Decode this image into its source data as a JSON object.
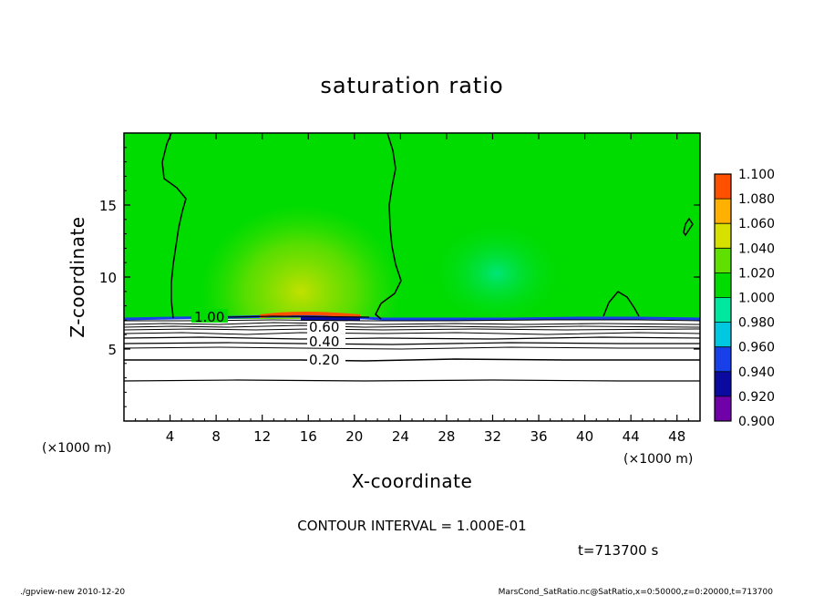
{
  "chart_data": {
    "type": "contour",
    "title": "saturation ratio",
    "xlabel": "X-coordinate",
    "ylabel": "Z-coordinate",
    "x_unit": "(×1000 m)",
    "y_unit": "(×1000 m)",
    "xlim": [
      0,
      50
    ],
    "ylim": [
      0,
      20
    ],
    "xticks": [
      4,
      8,
      12,
      16,
      20,
      24,
      28,
      32,
      36,
      40,
      44,
      48
    ],
    "yticks": [
      5,
      10,
      15
    ],
    "colorbar": {
      "levels": [
        0.9,
        0.92,
        0.94,
        0.96,
        0.98,
        1.0,
        1.02,
        1.04,
        1.06,
        1.08,
        1.1
      ],
      "labels": [
        "0.900",
        "0.920",
        "0.940",
        "0.960",
        "0.980",
        "1.000",
        "1.020",
        "1.040",
        "1.060",
        "1.080",
        "1.100"
      ],
      "colors": [
        "#7000a8",
        "#0a0aa0",
        "#1840e8",
        "#00c8e0",
        "#00e8a0",
        "#00dc00",
        "#60e000",
        "#d8e000",
        "#ffb000",
        "#ff5000",
        "#ff9090"
      ]
    },
    "contour_labels": [
      {
        "text": "1.00",
        "x": 7.5,
        "z": 7.2
      },
      {
        "text": "0.60",
        "x": 17.6,
        "z": 6.6
      },
      {
        "text": "0.40",
        "x": 17.6,
        "z": 5.5
      },
      {
        "text": "0.20",
        "x": 17.6,
        "z": 4.3
      }
    ],
    "contour_interval_text": "CONTOUR INTERVAL = 1.000E-01",
    "time_text": "t=713700 s"
  },
  "footer": {
    "left": "./gpview-new  2010-12-20",
    "right": "MarsCond_SatRatio.nc@SatRatio,x=0:50000,z=0:20000,t=713700"
  }
}
